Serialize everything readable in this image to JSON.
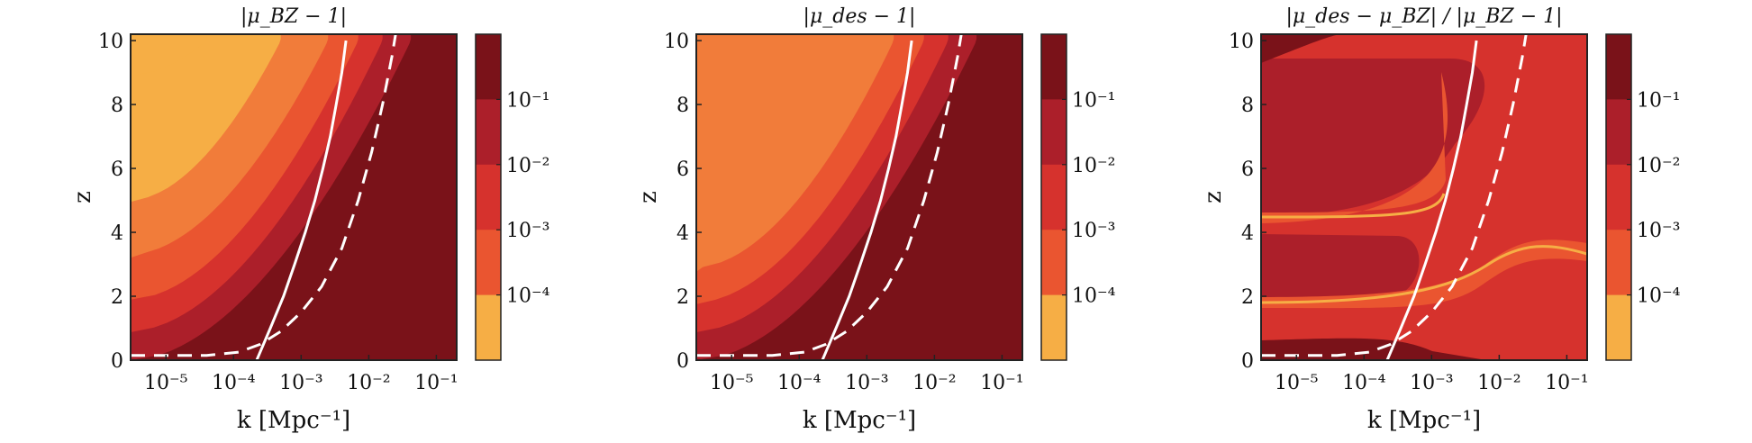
{
  "figure": {
    "xlabel": "k   [Mpc⁻¹]",
    "ylabel": "z"
  },
  "chart_data": [
    {
      "type": "heatmap",
      "title": "|μ_BZ − 1|",
      "xlabel": "k   [Mpc⁻¹]",
      "ylabel": "z",
      "x_scale": "log",
      "xlim": [
        3e-06,
        0.2
      ],
      "ylim": [
        0,
        10.2
      ],
      "x_ticks": [
        {
          "v": 1e-05,
          "label": "10⁻⁵"
        },
        {
          "v": 0.0001,
          "label": "10⁻⁴"
        },
        {
          "v": 0.001,
          "label": "10⁻³"
        },
        {
          "v": 0.01,
          "label": "10⁻²"
        },
        {
          "v": 0.1,
          "label": "10⁻¹"
        }
      ],
      "y_ticks": [
        0,
        2,
        4,
        6,
        8,
        10
      ],
      "colorbar": {
        "scale": "log",
        "levels": [
          "< 10⁻⁴",
          "10⁻⁴ – 10⁻³",
          "10⁻³ – 10⁻²",
          "10⁻² – 10⁻¹",
          "> 10⁻¹"
        ],
        "tick_labels": [
          "10⁻⁴",
          "10⁻³",
          "10⁻²",
          "10⁻¹"
        ],
        "colors": [
          "#f6ae45",
          "#f17c3a",
          "#ea5530",
          "#d6322d",
          "#ac1f2a",
          "#7a1219"
        ]
      },
      "contour_boundaries_k_at_z": [
        {
          "level": 0,
          "color": "#f6ae45",
          "z_plateau": 8.9,
          "k_at_10": 4e-05
        },
        {
          "level": 1,
          "color": "#f17c3a",
          "z_plateau": 5.0,
          "k_at_10": 0.0005
        },
        {
          "level": 2,
          "color": "#ea5530",
          "z_plateau": 3.3,
          "k_at_10": 0.0025
        },
        {
          "level": 3,
          "color": "#d6322d",
          "z_plateau": 1.9,
          "k_at_10": 0.007
        },
        {
          "level": 4,
          "color": "#ac1f2a",
          "z_plateau": 0.9,
          "k_at_10": 0.016
        },
        {
          "level": 5,
          "color": "#7a1219",
          "z_plateau": 0.0,
          "k_at_10": 0.042
        }
      ],
      "curves": [
        {
          "style": "solid",
          "color": "#ffffff",
          "points": [
            [
              0.00022,
              0
            ],
            [
              0.00035,
              1
            ],
            [
              0.00055,
              2
            ],
            [
              0.0008,
              3
            ],
            [
              0.00115,
              4
            ],
            [
              0.0016,
              5
            ],
            [
              0.0021,
              6
            ],
            [
              0.0027,
              7
            ],
            [
              0.0033,
              8
            ],
            [
              0.004,
              9
            ],
            [
              0.0046,
              10
            ]
          ]
        },
        {
          "style": "dashed",
          "color": "#ffffff",
          "points": [
            [
              3e-06,
              0.15
            ],
            [
              4e-05,
              0.15
            ],
            [
              0.00012,
              0.25
            ],
            [
              0.00025,
              0.5
            ],
            [
              0.0005,
              0.9
            ],
            [
              0.001,
              1.5
            ],
            [
              0.002,
              2.3
            ],
            [
              0.004,
              3.5
            ],
            [
              0.007,
              5.0
            ],
            [
              0.011,
              6.5
            ],
            [
              0.016,
              8.0
            ],
            [
              0.022,
              9.5
            ],
            [
              0.025,
              10.2
            ]
          ]
        }
      ]
    },
    {
      "type": "heatmap",
      "title": "|μ_des − 1|",
      "xlabel": "k   [Mpc⁻¹]",
      "ylabel": "z",
      "x_scale": "log",
      "xlim": [
        3e-06,
        0.2
      ],
      "ylim": [
        0,
        10.2
      ],
      "x_ticks": [
        {
          "v": 1e-05,
          "label": "10⁻⁵"
        },
        {
          "v": 0.0001,
          "label": "10⁻⁴"
        },
        {
          "v": 0.001,
          "label": "10⁻³"
        },
        {
          "v": 0.01,
          "label": "10⁻²"
        },
        {
          "v": 0.1,
          "label": "10⁻¹"
        }
      ],
      "y_ticks": [
        0,
        2,
        4,
        6,
        8,
        10
      ],
      "colorbar": {
        "scale": "log",
        "levels": [
          "< 10⁻⁴",
          "10⁻⁴ – 10⁻³",
          "10⁻³ – 10⁻²",
          "10⁻² – 10⁻¹",
          "> 10⁻¹"
        ],
        "tick_labels": [
          "10⁻⁴",
          "10⁻³",
          "10⁻²",
          "10⁻¹"
        ],
        "colors": [
          "#f6ae45",
          "#f17c3a",
          "#ea5530",
          "#d6322d",
          "#ac1f2a",
          "#7a1219"
        ]
      },
      "contour_boundaries_k_at_z": [
        {
          "level": 1,
          "color": "#f17c3a",
          "z_plateau": 10.2,
          "k_at_10": 0.001
        },
        {
          "level": 2,
          "color": "#ea5530",
          "z_plateau": 2.9,
          "k_at_10": 0.0025
        },
        {
          "level": 3,
          "color": "#d6322d",
          "z_plateau": 1.8,
          "k_at_10": 0.007
        },
        {
          "level": 4,
          "color": "#ac1f2a",
          "z_plateau": 0.9,
          "k_at_10": 0.016
        },
        {
          "level": 5,
          "color": "#7a1219",
          "z_plateau": 0.0,
          "k_at_10": 0.042
        }
      ],
      "curves": [
        {
          "style": "solid",
          "color": "#ffffff",
          "points": [
            [
              0.00022,
              0
            ],
            [
              0.00035,
              1
            ],
            [
              0.00055,
              2
            ],
            [
              0.0008,
              3
            ],
            [
              0.00115,
              4
            ],
            [
              0.0016,
              5
            ],
            [
              0.0021,
              6
            ],
            [
              0.0027,
              7
            ],
            [
              0.0033,
              8
            ],
            [
              0.004,
              9
            ],
            [
              0.0046,
              10
            ]
          ]
        },
        {
          "style": "dashed",
          "color": "#ffffff",
          "points": [
            [
              3e-06,
              0.15
            ],
            [
              4e-05,
              0.15
            ],
            [
              0.00012,
              0.25
            ],
            [
              0.00025,
              0.5
            ],
            [
              0.0005,
              0.9
            ],
            [
              0.001,
              1.5
            ],
            [
              0.002,
              2.3
            ],
            [
              0.004,
              3.5
            ],
            [
              0.007,
              5.0
            ],
            [
              0.011,
              6.5
            ],
            [
              0.016,
              8.0
            ],
            [
              0.022,
              9.5
            ],
            [
              0.025,
              10.2
            ]
          ]
        }
      ]
    },
    {
      "type": "heatmap",
      "title": "|μ_des − μ_BZ| / |μ_BZ − 1|",
      "xlabel": "k   [Mpc⁻¹]",
      "ylabel": "z",
      "x_scale": "log",
      "xlim": [
        3e-06,
        0.2
      ],
      "ylim": [
        0,
        10.2
      ],
      "x_ticks": [
        {
          "v": 1e-05,
          "label": "10⁻⁵"
        },
        {
          "v": 0.0001,
          "label": "10⁻⁴"
        },
        {
          "v": 0.001,
          "label": "10⁻³"
        },
        {
          "v": 0.01,
          "label": "10⁻²"
        },
        {
          "v": 0.1,
          "label": "10⁻¹"
        }
      ],
      "y_ticks": [
        0,
        2,
        4,
        6,
        8,
        10
      ],
      "colorbar": {
        "scale": "log",
        "levels": [
          "< 10⁻⁴",
          "10⁻⁴ – 10⁻³",
          "10⁻³ – 10⁻²",
          "10⁻² – 10⁻¹",
          "> 10⁻¹"
        ],
        "tick_labels": [
          "10⁻⁴",
          "10⁻³",
          "10⁻²",
          "10⁻¹"
        ],
        "colors": [
          "#f6ae45",
          "#f17c3a",
          "#ea5530",
          "#d6322d",
          "#ac1f2a",
          "#7a1219"
        ]
      },
      "regions": [
        {
          "color": "#d6322d",
          "level": "10⁻² – 10⁻¹",
          "area": "background"
        },
        {
          "color": "#ac1f2a",
          "level": "10⁻² – 10⁻¹",
          "area": "low-k, 4.5 < z < 10"
        },
        {
          "color": "#ac1f2a",
          "level": "10⁻² – 10⁻¹",
          "area": "low-k, 2.7 < z < 4.1"
        },
        {
          "color": "#7a1219",
          "level": "> 10⁻¹",
          "area": "top-left corner"
        },
        {
          "color": "#7a1219",
          "level": "> 10⁻¹",
          "area": "bottom strip near z = 0"
        },
        {
          "color": "#ea5530",
          "level": "10⁻³ – 10⁻²",
          "area": "band along z ≈ 4.3 and z ≈ 1.6"
        },
        {
          "color": "#f6ae45",
          "level": "< 10⁻⁴",
          "area": "thin band along z ≈ 4.3, z ≈ 1.6 and z ≈ 3.3 at high k"
        }
      ],
      "curves": [
        {
          "style": "solid",
          "color": "#ffffff",
          "points": [
            [
              0.00022,
              0
            ],
            [
              0.00035,
              1
            ],
            [
              0.00055,
              2
            ],
            [
              0.0008,
              3
            ],
            [
              0.00115,
              4
            ],
            [
              0.0016,
              5
            ],
            [
              0.0021,
              6
            ],
            [
              0.0027,
              7
            ],
            [
              0.0033,
              8
            ],
            [
              0.004,
              9
            ],
            [
              0.0046,
              10
            ]
          ]
        },
        {
          "style": "dashed",
          "color": "#ffffff",
          "points": [
            [
              3e-06,
              0.15
            ],
            [
              4e-05,
              0.15
            ],
            [
              0.00012,
              0.25
            ],
            [
              0.00025,
              0.5
            ],
            [
              0.0005,
              0.9
            ],
            [
              0.001,
              1.5
            ],
            [
              0.002,
              2.3
            ],
            [
              0.004,
              3.5
            ],
            [
              0.007,
              5.0
            ],
            [
              0.011,
              6.5
            ],
            [
              0.016,
              8.0
            ],
            [
              0.022,
              9.5
            ],
            [
              0.025,
              10.2
            ]
          ]
        }
      ]
    }
  ]
}
